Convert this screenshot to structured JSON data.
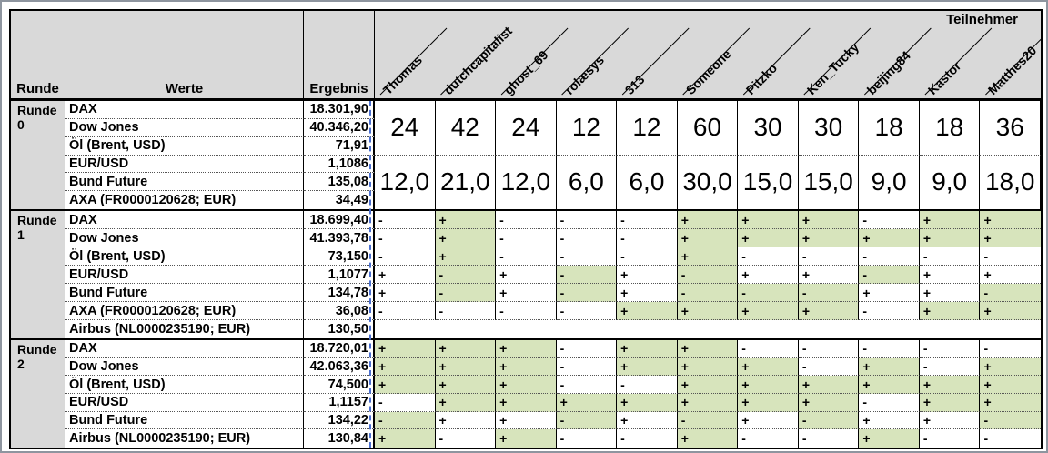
{
  "header": {
    "col_runde": "Runde",
    "col_werte": "Werte",
    "col_ergebnis": "Ergebnis",
    "group_label": "Teilnehmer",
    "participants": [
      "Thomas",
      "dutchcapitalist",
      "ghost_69",
      "rolæsys",
      "313",
      "Someone",
      "Pitzko",
      "Ken_Tucky",
      "beijing84",
      "Kastor",
      "Matthes20"
    ]
  },
  "colors": {
    "header_bg": "#d9d9d9",
    "correct_green": "#d7e4bc",
    "page_break_blue": "#4a6fd0"
  },
  "rounds": [
    {
      "label": "Runde 0",
      "instruments": [
        {
          "name": "DAX",
          "value": "18.301,90"
        },
        {
          "name": "Dow Jones",
          "value": "40.346,20"
        },
        {
          "name": "Öl (Brent, USD)",
          "value": "71,91"
        },
        {
          "name": "EUR/USD",
          "value": "1,1086"
        },
        {
          "name": "Bund Future",
          "value": "135,08"
        },
        {
          "name": "AXA (FR0000120628; EUR)",
          "value": "34,49"
        }
      ],
      "merged_scores": {
        "top": [
          "24",
          "42",
          "24",
          "12",
          "12",
          "60",
          "30",
          "30",
          "18",
          "18",
          "36"
        ],
        "bottom": [
          "12,0",
          "21,0",
          "12,0",
          "6,0",
          "6,0",
          "30,0",
          "15,0",
          "15,0",
          "9,0",
          "9,0",
          "18,0"
        ]
      }
    },
    {
      "label": "Runde 1",
      "instruments": [
        {
          "name": "DAX",
          "value": "18.699,40",
          "preds": [
            "-w",
            "+g",
            "-w",
            "-w",
            "-w",
            "+g",
            "+g",
            "+g",
            "-w",
            "+g",
            "+g"
          ]
        },
        {
          "name": "Dow Jones",
          "value": "41.393,78",
          "preds": [
            "-w",
            "+g",
            "-w",
            "-w",
            "-w",
            "+g",
            "+g",
            "+g",
            "+g",
            "+g",
            "+g"
          ]
        },
        {
          "name": "Öl (Brent, USD)",
          "value": "73,150",
          "preds": [
            "-w",
            "+g",
            "-w",
            "-w",
            "-w",
            "+g",
            "-w",
            "-w",
            "-w",
            "-w",
            "-w"
          ]
        },
        {
          "name": "EUR/USD",
          "value": "1,1077",
          "preds": [
            "+w",
            "-g",
            "+w",
            "-g",
            "+w",
            "-g",
            "+w",
            "+w",
            "-g",
            "+w",
            "+w"
          ]
        },
        {
          "name": "Bund Future",
          "value": "134,78",
          "preds": [
            "+w",
            "-g",
            "+w",
            "-g",
            "+w",
            "-g",
            "-g",
            "-g",
            "+w",
            "+w",
            "-g"
          ]
        },
        {
          "name": "AXA (FR0000120628; EUR)",
          "value": "36,08",
          "preds": [
            "-w",
            "-w",
            "-w",
            "-w",
            "+g",
            "+g",
            "+g",
            "+g",
            "-w",
            "+g",
            "+g"
          ]
        },
        {
          "name": "Airbus (NL0000235190; EUR)",
          "value": "130,50",
          "preds": null
        }
      ]
    },
    {
      "label": "Runde 2",
      "instruments": [
        {
          "name": "DAX",
          "value": "18.720,01",
          "preds": [
            "+g",
            "+g",
            "+g",
            "-w",
            "+g",
            "+g",
            "-w",
            "-w",
            "-w",
            "-w",
            "-w"
          ]
        },
        {
          "name": "Dow Jones",
          "value": "42.063,36",
          "preds": [
            "+g",
            "+g",
            "+g",
            "-w",
            "+g",
            "+g",
            "+g",
            "-w",
            "+g",
            "-w",
            "+g"
          ]
        },
        {
          "name": "Öl (Brent, USD)",
          "value": "74,500",
          "preds": [
            "+g",
            "+g",
            "+g",
            "-w",
            "-w",
            "+g",
            "+g",
            "+g",
            "+g",
            "+g",
            "+g"
          ]
        },
        {
          "name": "EUR/USD",
          "value": "1,1157",
          "preds": [
            "-w",
            "+g",
            "+g",
            "+g",
            "+g",
            "+g",
            "+g",
            "+g",
            "-w",
            "+g",
            "+g"
          ]
        },
        {
          "name": "Bund Future",
          "value": "134,22",
          "preds": [
            "-g",
            "+w",
            "+w",
            "-g",
            "+w",
            "-g",
            "+w",
            "-g",
            "+w",
            "+w",
            "-g"
          ]
        },
        {
          "name": "Airbus (NL0000235190; EUR)",
          "value": "130,84",
          "preds": [
            "+g",
            "-w",
            "+g",
            "-w",
            "-w",
            "+g",
            "-w",
            "-w",
            "+g",
            "-w",
            "-w"
          ]
        }
      ]
    }
  ]
}
